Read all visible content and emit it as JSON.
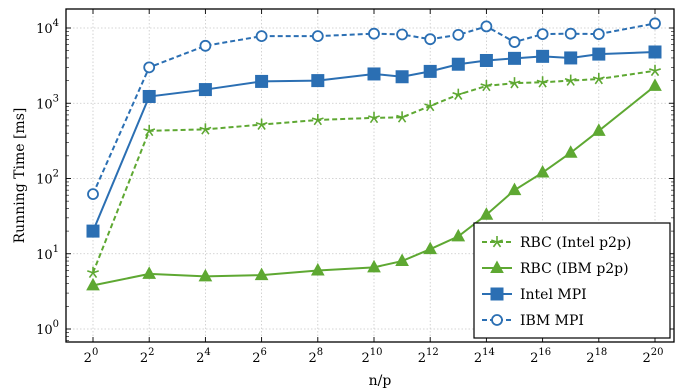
{
  "chart_data": {
    "type": "line",
    "title": "",
    "xlabel": "n/p",
    "ylabel": "Running Time [ms]",
    "x_scale": "log2",
    "y_scale": "log10",
    "xlim": [
      0,
      20
    ],
    "ylim": [
      0.7,
      16000
    ],
    "x_exponents": [
      0,
      2,
      4,
      6,
      8,
      10,
      11,
      12,
      13,
      14,
      15,
      16,
      17,
      18,
      20
    ],
    "x_ticks": [
      {
        "base": "2",
        "exp": "0"
      },
      {
        "base": "2",
        "exp": "2"
      },
      {
        "base": "2",
        "exp": "4"
      },
      {
        "base": "2",
        "exp": "6"
      },
      {
        "base": "2",
        "exp": "8"
      },
      {
        "base": "2",
        "exp": "10"
      },
      {
        "base": "2",
        "exp": "12"
      },
      {
        "base": "2",
        "exp": "14"
      },
      {
        "base": "2",
        "exp": "16"
      },
      {
        "base": "2",
        "exp": "18"
      },
      {
        "base": "2",
        "exp": "20"
      }
    ],
    "y_ticks": [
      {
        "base": "10",
        "exp": "0"
      },
      {
        "base": "10",
        "exp": "1"
      },
      {
        "base": "10",
        "exp": "2"
      },
      {
        "base": "10",
        "exp": "3"
      },
      {
        "base": "10",
        "exp": "4"
      }
    ],
    "grid": true,
    "legend_position": "bottom-right",
    "series": [
      {
        "name": "RBC (Intel p2p)",
        "color": "#5ea832",
        "line": "dashed",
        "marker": "star",
        "values": [
          5.6,
          430,
          450,
          520,
          600,
          640,
          650,
          920,
          1300,
          1700,
          1850,
          1900,
          2000,
          2100,
          2700
        ]
      },
      {
        "name": "RBC (IBM p2p)",
        "color": "#5ea832",
        "line": "solid",
        "marker": "triangle",
        "values": [
          3.8,
          5.4,
          5.0,
          5.2,
          6.0,
          6.6,
          8.0,
          11.5,
          17,
          33,
          70,
          120,
          220,
          430,
          1700
        ]
      },
      {
        "name": "Intel MPI",
        "color": "#2b6fb3",
        "line": "solid",
        "marker": "square",
        "values": [
          20,
          1230,
          1520,
          1950,
          2000,
          2450,
          2250,
          2650,
          3300,
          3700,
          3950,
          4200,
          4000,
          4500,
          4800
        ]
      },
      {
        "name": "IBM MPI",
        "color": "#2b6fb3",
        "line": "dashed",
        "marker": "circle",
        "values": [
          62,
          3000,
          5800,
          7800,
          7800,
          8400,
          8200,
          7100,
          8100,
          10500,
          6500,
          8300,
          8400,
          8300,
          11500
        ]
      }
    ]
  }
}
